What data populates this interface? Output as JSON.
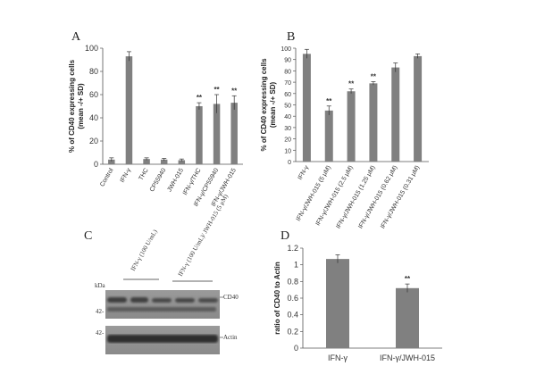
{
  "chart_data": [
    {
      "panel": "A",
      "type": "bar",
      "ylabel": "% of CD40 expressing cells (mean -/+ SD)",
      "ylim": [
        0,
        100
      ],
      "yticks": [
        0,
        20,
        40,
        60,
        80,
        100
      ],
      "grid": false,
      "categories": [
        "Control",
        "IFN-γ",
        "THC",
        "CP55940",
        "JWH-015",
        "IFN-γ/THC",
        "IFN-γ/CP55940",
        "IFN-γ/JWH-015"
      ],
      "values": [
        4,
        93,
        4.5,
        4,
        3.5,
        50,
        52,
        53
      ],
      "errors": [
        1.5,
        4,
        1,
        1,
        1,
        3,
        8,
        6
      ],
      "annotations": [
        "",
        "",
        "",
        "",
        "",
        "**",
        "**",
        "**"
      ],
      "bar_color": "#808080"
    },
    {
      "panel": "B",
      "type": "bar",
      "ylabel": "% of CD40 expressing cells (mean -/+ SD)",
      "ylim": [
        0,
        100
      ],
      "yticks": [
        0,
        10,
        20,
        30,
        40,
        50,
        60,
        70,
        80,
        90,
        100
      ],
      "grid": false,
      "categories": [
        "IFN-γ",
        "IFN-γ/JWH-015 (5 μM)",
        "IFN-γ/JWH-015 (2.5 μM)",
        "IFN-γ/JWH-015 (1.25 μM)",
        "IFN-γ/JWH-015 (0.62 μM)",
        "IFN-γ/JWH-015 (0.31 μM)"
      ],
      "values": [
        95,
        45,
        62,
        69,
        83,
        93
      ],
      "errors": [
        4,
        4,
        2,
        1.5,
        4,
        2
      ],
      "annotations": [
        "",
        "**",
        "**",
        "**",
        "",
        ""
      ],
      "bar_color": "#808080"
    },
    {
      "panel": "D",
      "type": "bar",
      "ylabel": "ratio of CD40 to Actin",
      "ylim": [
        0,
        1.2
      ],
      "yticks": [
        "0",
        "0.2",
        "0.4",
        "0.6",
        "0.8",
        "1",
        "1.2"
      ],
      "grid": false,
      "categories": [
        "IFN-γ",
        "IFN-γ/JWH-015"
      ],
      "values": [
        1.07,
        0.72
      ],
      "errors": [
        0.05,
        0.05
      ],
      "annotations": [
        "",
        "**"
      ],
      "bar_color": "#808080"
    }
  ],
  "blot": {
    "panel": "C",
    "lane_labels": [
      "IFN-γ (100 U/mL)",
      "IFN-γ (100 U/mL)/ JWH-015 (5 μM)"
    ],
    "kda_label": "kDa",
    "marker_upper": "42-",
    "marker_lower": "42-",
    "band_cd40": "CD40",
    "band_actin": "Actin"
  },
  "panels": {
    "A": "A",
    "B": "B",
    "C": "C",
    "D": "D"
  }
}
